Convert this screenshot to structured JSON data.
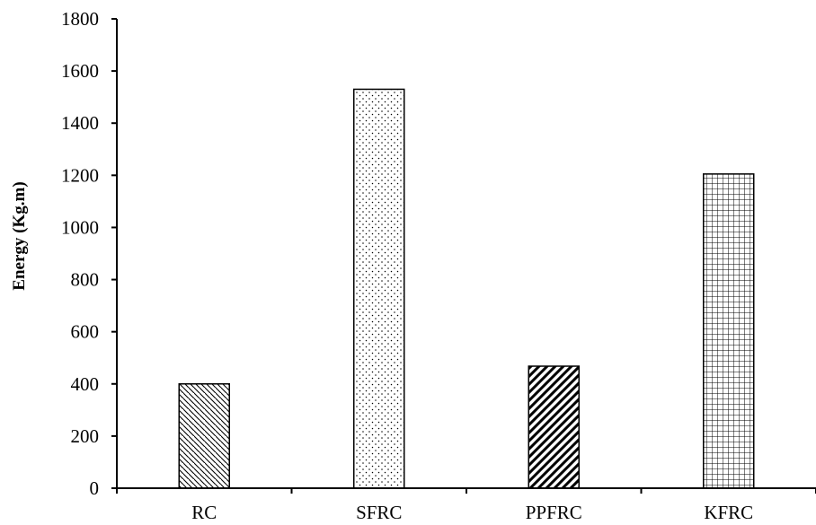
{
  "chart_data": {
    "type": "bar",
    "categories": [
      "RC",
      "SFRC",
      "PPFRC",
      "KFRC"
    ],
    "values": [
      400,
      1530,
      468,
      1205
    ],
    "bar_patterns": [
      "diagonal-back-hatch",
      "dots",
      "diagonal-forward-hatch-bold",
      "grid"
    ],
    "title": "",
    "xlabel": "",
    "ylabel": "Energy (Kg.m)",
    "ylim": [
      0,
      1800
    ],
    "yticks": [
      0,
      200,
      400,
      600,
      800,
      1000,
      1200,
      1400,
      1600,
      1800
    ],
    "grid": false,
    "legend": "none",
    "colors": {
      "bar_fill": "#ffffff",
      "bar_stroke": "#000000",
      "pattern_ink": "#000000"
    }
  }
}
